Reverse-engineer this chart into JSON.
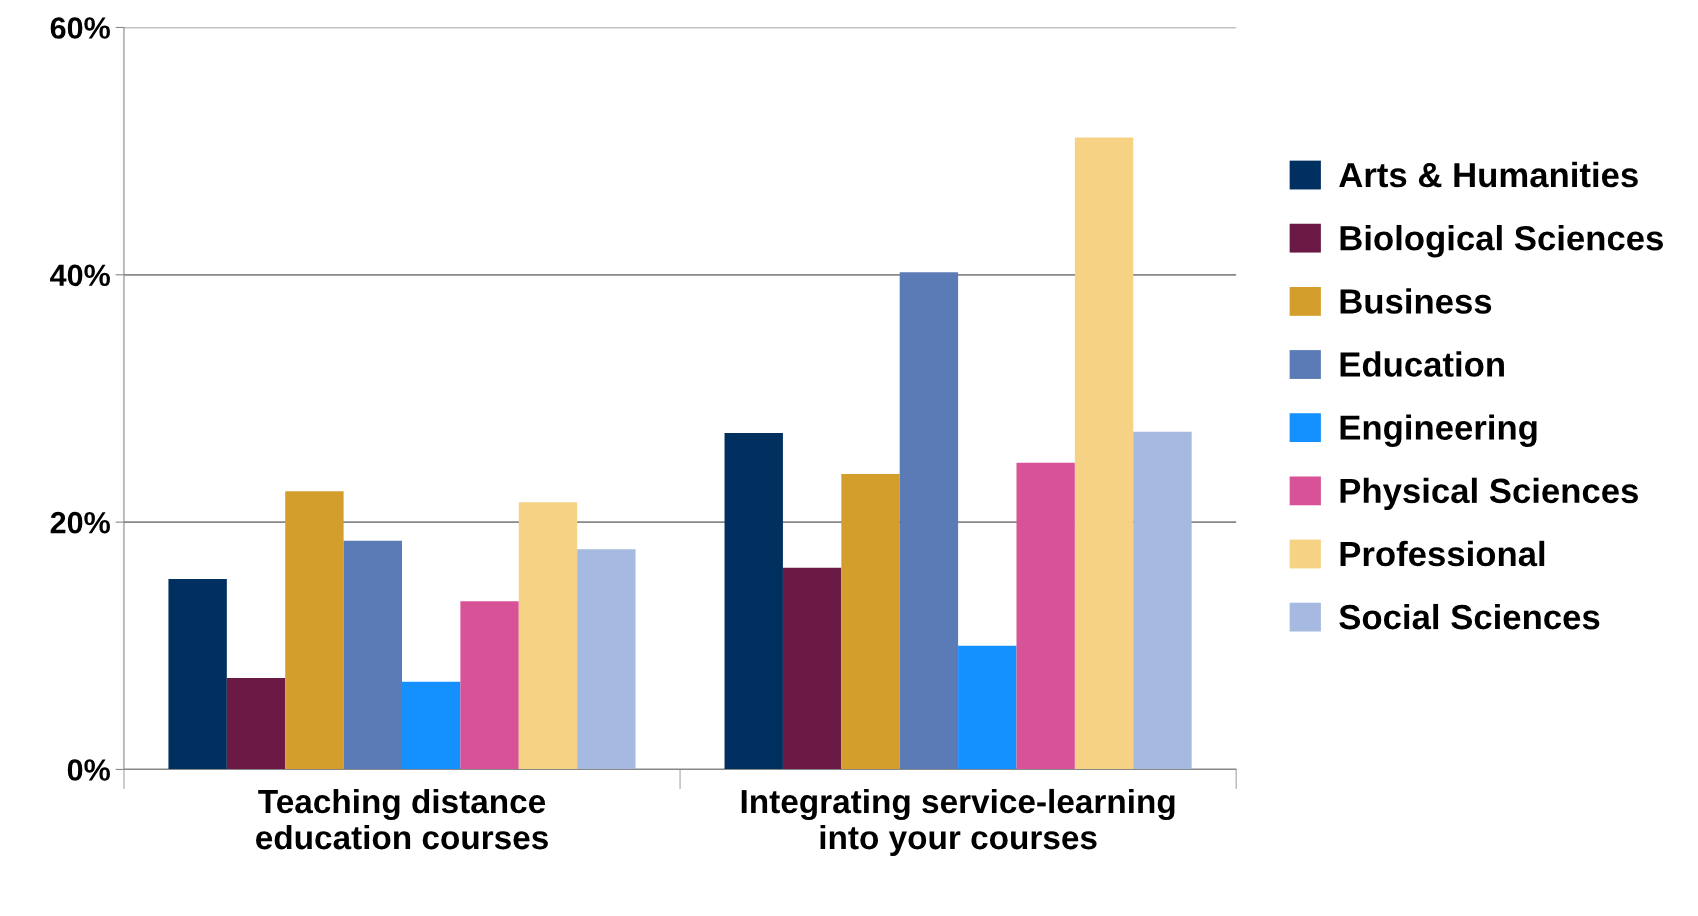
{
  "chart_data": {
    "type": "bar",
    "categories": [
      "Teaching distance\neducation courses",
      "Integrating service-learning\ninto your courses"
    ],
    "series": [
      {
        "name": "Arts & Humanities",
        "color": "#003060",
        "values": [
          15.4,
          27.2
        ]
      },
      {
        "name": "Biological Sciences",
        "color": "#6b1a45",
        "values": [
          7.4,
          16.3
        ]
      },
      {
        "name": "Business",
        "color": "#d49e2c",
        "values": [
          22.5,
          23.9
        ]
      },
      {
        "name": "Education",
        "color": "#5a7bb5",
        "values": [
          18.5,
          40.2
        ]
      },
      {
        "name": "Engineering",
        "color": "#1490ff",
        "values": [
          7.1,
          10.0
        ]
      },
      {
        "name": "Physical Sciences",
        "color": "#d85298",
        "values": [
          13.6,
          24.8
        ]
      },
      {
        "name": "Professional",
        "color": "#f6d285",
        "values": [
          21.6,
          51.1
        ]
      },
      {
        "name": "Social Sciences",
        "color": "#a6b9e1",
        "values": [
          17.8,
          27.3
        ]
      }
    ],
    "ylim": [
      0,
      60
    ],
    "yticks": [
      {
        "value": 0,
        "label": "0%"
      },
      {
        "value": 20,
        "label": "20%"
      },
      {
        "value": 40,
        "label": "40%"
      },
      {
        "value": 60,
        "label": "60%"
      }
    ],
    "grid": "y",
    "legend": "right"
  }
}
